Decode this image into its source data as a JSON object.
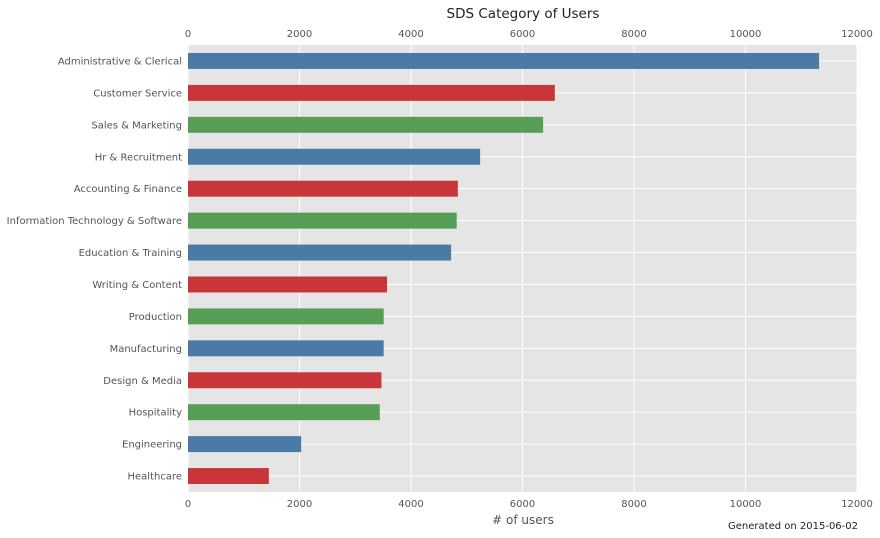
{
  "chart_data": {
    "type": "bar",
    "orientation": "horizontal",
    "title": "SDS Category of Users",
    "xlabel": "# of users",
    "ylabel": "",
    "xlim": [
      0,
      12000
    ],
    "xticks": [
      0,
      2000,
      4000,
      6000,
      8000,
      10000,
      12000
    ],
    "grid": true,
    "categories": [
      "Administrative & Clerical",
      "Customer Service",
      "Sales & Marketing",
      "Hr & Recruitment",
      "Accounting & Finance",
      "Information Technology & Software",
      "Education & Training",
      "Writing & Content",
      "Production",
      "Manufacturing",
      "Design & Media",
      "Hospitality",
      "Engineering",
      "Healthcare"
    ],
    "values": [
      11320,
      6580,
      6370,
      5240,
      4840,
      4820,
      4720,
      3570,
      3510,
      3510,
      3470,
      3440,
      2030,
      1450
    ],
    "colors": [
      "#4a7ba6",
      "#c9363a",
      "#569e56"
    ]
  },
  "footnote": "Generated on 2015-06-02"
}
